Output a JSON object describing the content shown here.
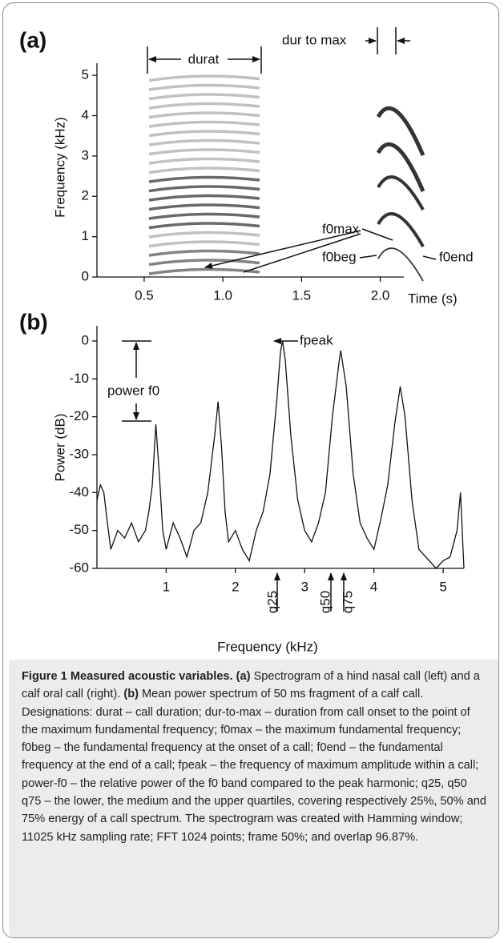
{
  "chart_data": [
    {
      "type": "spectrogram",
      "panel_label": "(a)",
      "ylabel": "Frequency (kHz)",
      "xlabel": "Time (s)",
      "xlim": [
        0.2,
        2.15
      ],
      "xticks": [
        0.5,
        {
          "value": 1,
          "label": "1.0"
        },
        1.5,
        {
          "value": 2,
          "label": "2.0"
        }
      ],
      "ylim": [
        0,
        5.3
      ],
      "yticks": [
        0,
        1,
        2,
        3,
        4,
        5
      ],
      "annotations": [
        "durat",
        "dur to max",
        "f0max",
        "f0beg",
        "f0end"
      ]
    },
    {
      "type": "line",
      "panel_label": "(b)",
      "ylabel": "Power (dB)",
      "xlabel": "Frequency (kHz)",
      "xlim": [
        0,
        5.3
      ],
      "xticks": [
        1,
        2,
        3,
        4,
        5
      ],
      "ylim": [
        -60,
        4
      ],
      "yticks": [
        0,
        -10,
        -20,
        -30,
        -40,
        -50,
        -60
      ],
      "x": [
        0,
        0.05,
        0.1,
        0.15,
        0.2,
        0.3,
        0.4,
        0.5,
        0.6,
        0.7,
        0.75,
        0.8,
        0.85,
        0.9,
        0.95,
        1.0,
        1.1,
        1.2,
        1.3,
        1.4,
        1.5,
        1.6,
        1.7,
        1.75,
        1.8,
        1.85,
        1.9,
        2.0,
        2.1,
        2.2,
        2.3,
        2.4,
        2.5,
        2.6,
        2.65,
        2.68,
        2.72,
        2.8,
        2.9,
        3.0,
        3.1,
        3.2,
        3.3,
        3.4,
        3.5,
        3.52,
        3.6,
        3.7,
        3.8,
        3.9,
        4.0,
        4.1,
        4.2,
        4.3,
        4.38,
        4.45,
        4.55,
        4.65,
        4.8,
        4.9,
        5.0,
        5.1,
        5.2,
        5.25,
        5.3
      ],
      "series": [
        {
          "color": "#111111",
          "values": [
            -42,
            -38,
            -40,
            -48,
            -55,
            -50,
            -52,
            -48,
            -53,
            -50,
            -45,
            -38,
            -22,
            -35,
            -50,
            -55,
            -48,
            -52,
            -57,
            -50,
            -48,
            -40,
            -25,
            -16,
            -28,
            -45,
            -53,
            -50,
            -55,
            -58,
            -50,
            -45,
            -35,
            -15,
            -3,
            0,
            -5,
            -25,
            -42,
            -50,
            -53,
            -48,
            -40,
            -20,
            -5,
            -2.5,
            -12,
            -35,
            -48,
            -52,
            -55,
            -47,
            -38,
            -22,
            -12,
            -20,
            -42,
            -55,
            -58,
            -60,
            -58,
            -57,
            -50,
            -40,
            -60
          ]
        }
      ],
      "annotations": [
        "fpeak",
        "power f0",
        "q25",
        "q50",
        "q75"
      ]
    }
  ],
  "caption": [
    {
      "text": "Figure 1 Measured acoustic variables.",
      "bold": true
    },
    {
      "text": " "
    },
    {
      "text": "(a)",
      "bold": true
    },
    {
      "text": " Spectrogram of a hind nasal call (left) and a calf oral call (right). "
    },
    {
      "text": "(b)",
      "bold": true
    },
    {
      "text": " Mean power spectrum of 50 ms fragment of a calf call. Designations: durat – call duration; dur-to-max – duration from call onset to the point of the maximum fundamental frequency; f0max – the maximum fundamental frequency; f0beg – the fundamental frequency at the onset of a call; f0end – the fundamental frequency at the end of a call; fpeak – the frequency of maximum amplitude within a call; power-f0 – the relative power of the f0 band compared to the peak harmonic; q25, q50 q75 – the lower, the medium and the upper quartiles, covering respectively 25%, 50% and 75% energy of a call spectrum. The spectrogram was created with Hamming window; 11025 kHz sampling rate; FFT 1024 points; frame 50%; and overlap 96.87%."
    }
  ]
}
